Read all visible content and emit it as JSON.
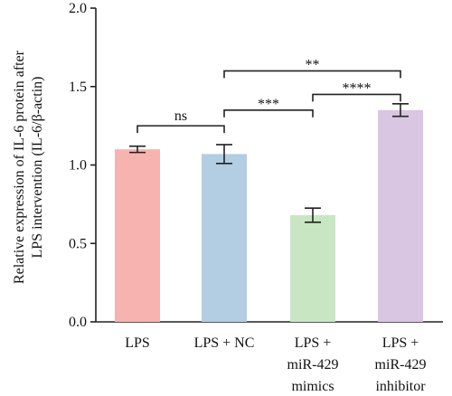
{
  "chart_data": {
    "type": "bar",
    "ylabel_lines": [
      "Relative expression of IL-6 protein after",
      "LPS intervention (IL-6/β-actin)"
    ],
    "ylim": [
      0,
      2.0
    ],
    "yticks": [
      "0.0",
      "0.5",
      "1.0",
      "1.5",
      "2.0"
    ],
    "ytick_values": [
      0,
      0.5,
      1.0,
      1.5,
      2.0
    ],
    "categories": [
      [
        "LPS"
      ],
      [
        "LPS + NC"
      ],
      [
        "LPS +",
        "miR-429",
        "mimics"
      ],
      [
        "LPS +",
        "miR-429",
        "inhibitor"
      ]
    ],
    "values": [
      1.1,
      1.07,
      0.68,
      1.35
    ],
    "errors": [
      0.02,
      0.06,
      0.045,
      0.04
    ],
    "colors": [
      "#f6b3b0",
      "#b3cde3",
      "#c8e6c2",
      "#d9c6e3"
    ],
    "significance": [
      {
        "from": 0,
        "to": 1,
        "label": "ns",
        "y": 1.25
      },
      {
        "from": 1,
        "to": 2,
        "label": "***",
        "y": 1.35
      },
      {
        "from": 2,
        "to": 3,
        "label": "****",
        "y": 1.45
      },
      {
        "from": 1,
        "to": 3,
        "label": "**",
        "y": 1.6
      }
    ]
  }
}
